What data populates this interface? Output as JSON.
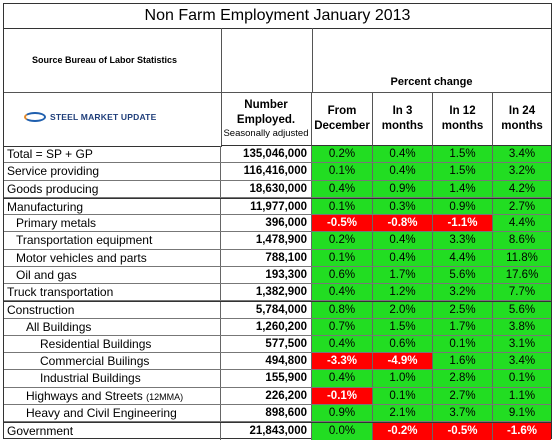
{
  "title": "Non Farm Employment January 2013",
  "source": "Source Bureau of Labor Statistics",
  "logo_text": "STEEL MARKET UPDATE",
  "headers": {
    "percent_change": "Percent change",
    "number_line1": "Number",
    "number_line2": "Employed.",
    "number_line3": "Seasonally adjusted",
    "from_line1": "From",
    "from_line2": "December",
    "in3_line1": "In 3",
    "in3_line2": "months",
    "in12_line1": "In 12",
    "in12_line2": "months",
    "in24_line1": "In 24",
    "in24_line2": "months"
  },
  "colors": {
    "positive": "#22dd22",
    "negative": "#ff0000"
  },
  "rows": [
    {
      "label": "Total = SP + GP",
      "note": "",
      "indent": 0,
      "group": false,
      "number": "135,046,000",
      "p": [
        "0.2%",
        "0.4%",
        "1.5%",
        "3.4%"
      ]
    },
    {
      "label": "Service providing",
      "note": "",
      "indent": 0,
      "group": false,
      "number": "116,416,000",
      "p": [
        "0.1%",
        "0.4%",
        "1.5%",
        "3.2%"
      ]
    },
    {
      "label": "Goods producing",
      "note": "",
      "indent": 0,
      "group": false,
      "number": "18,630,000",
      "p": [
        "0.4%",
        "0.9%",
        "1.4%",
        "4.2%"
      ]
    },
    {
      "label": "Manufacturing",
      "note": "",
      "indent": 0,
      "group": true,
      "number": "11,977,000",
      "p": [
        "0.1%",
        "0.3%",
        "0.9%",
        "2.7%"
      ]
    },
    {
      "label": "Primary metals",
      "note": "",
      "indent": 1,
      "group": false,
      "number": "396,000",
      "p": [
        "-0.5%",
        "-0.8%",
        "-1.1%",
        "4.4%"
      ]
    },
    {
      "label": "Transportation equipment",
      "note": "",
      "indent": 1,
      "group": false,
      "number": "1,478,900",
      "p": [
        "0.2%",
        "0.4%",
        "3.3%",
        "8.6%"
      ]
    },
    {
      "label": "Motor vehicles and parts",
      "note": "",
      "indent": 1,
      "group": false,
      "number": "788,100",
      "p": [
        "0.1%",
        "0.4%",
        "4.4%",
        "11.8%"
      ]
    },
    {
      "label": "Oil and gas",
      "note": "",
      "indent": 1,
      "group": false,
      "number": "193,300",
      "p": [
        "0.6%",
        "1.7%",
        "5.6%",
        "17.6%"
      ]
    },
    {
      "label": "Truck transportation",
      "note": "",
      "indent": 0,
      "group": false,
      "number": "1,382,900",
      "p": [
        "0.4%",
        "1.2%",
        "3.2%",
        "7.7%"
      ]
    },
    {
      "label": "Construction",
      "note": "",
      "indent": 0,
      "group": true,
      "number": "5,784,000",
      "p": [
        "0.8%",
        "2.0%",
        "2.5%",
        "5.6%"
      ]
    },
    {
      "label": "All Buildings",
      "note": "",
      "indent": 2,
      "group": false,
      "number": "1,260,200",
      "p": [
        "0.7%",
        "1.5%",
        "1.7%",
        "3.8%"
      ]
    },
    {
      "label": "Residential Buildings",
      "note": "",
      "indent": 3,
      "group": false,
      "number": "577,500",
      "p": [
        "0.4%",
        "0.6%",
        "0.1%",
        "3.1%"
      ]
    },
    {
      "label": "Commercial Builings",
      "note": "",
      "indent": 3,
      "group": false,
      "number": "494,800",
      "p": [
        "-3.3%",
        "-4.9%",
        "1.6%",
        "3.4%"
      ]
    },
    {
      "label": "Industrial Buildings",
      "note": "",
      "indent": 3,
      "group": false,
      "number": "155,900",
      "p": [
        "0.4%",
        "1.0%",
        "2.8%",
        "0.1%"
      ]
    },
    {
      "label": "Highways and Streets",
      "note": "(12MMA)",
      "indent": 2,
      "group": false,
      "number": "226,200",
      "p": [
        "-0.1%",
        "0.1%",
        "2.7%",
        "1.1%"
      ]
    },
    {
      "label": "Heavy and Civil Engineering",
      "note": "",
      "indent": 2,
      "group": false,
      "number": "898,600",
      "p": [
        "0.9%",
        "2.1%",
        "3.7%",
        "9.1%"
      ]
    },
    {
      "label": "Government",
      "note": "",
      "indent": 0,
      "group": true,
      "number": "21,843,000",
      "p": [
        "0.0%",
        "-0.2%",
        "-0.5%",
        "-1.6%"
      ]
    }
  ]
}
